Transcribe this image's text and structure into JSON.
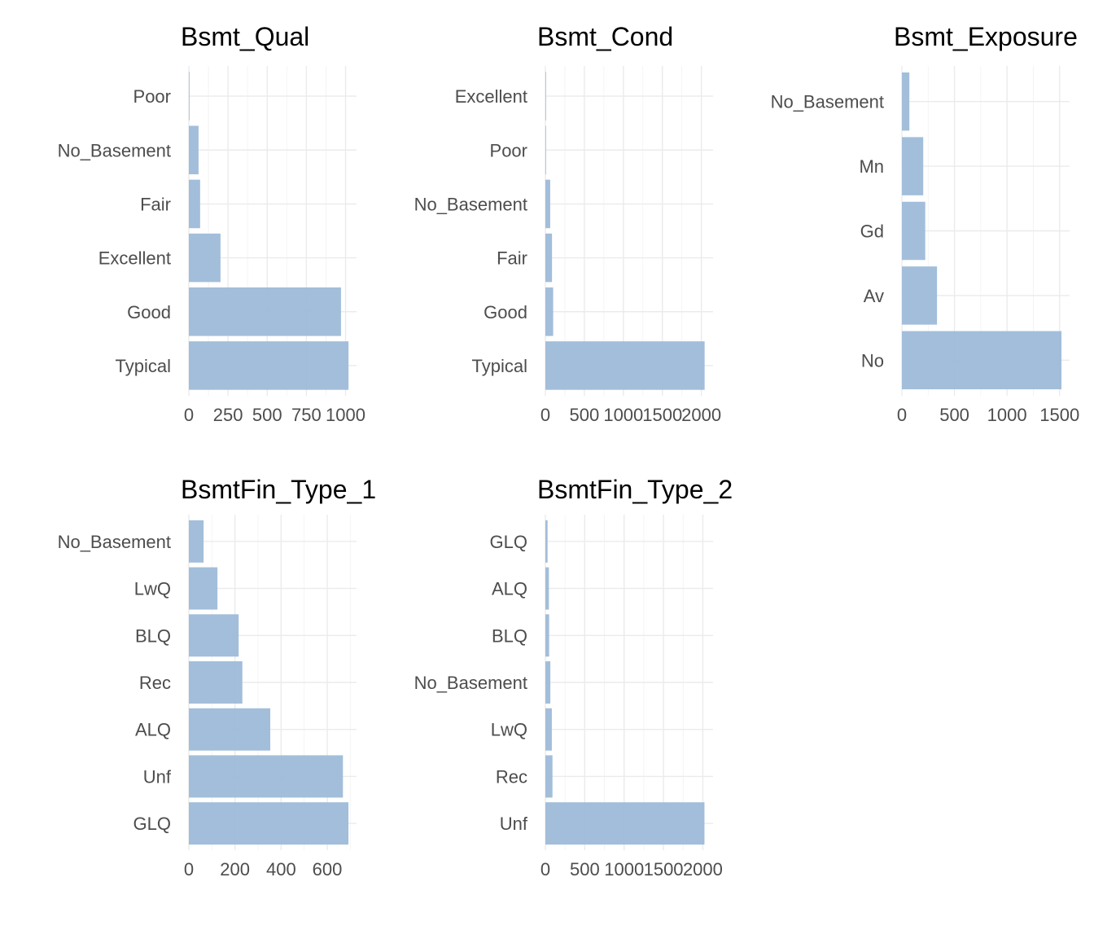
{
  "colors": {
    "bar": "#9dbbd8",
    "grid": "#ebebeb",
    "text": "#4d4d4d",
    "title": "#000000"
  },
  "chart_data": [
    {
      "type": "bar",
      "orientation": "horizontal",
      "title": "Bsmt_Qual",
      "categories": [
        "Typical",
        "Good",
        "Excellent",
        "Fair",
        "No_Basement",
        "Poor"
      ],
      "values": [
        1019,
        971,
        202,
        72,
        62,
        1
      ],
      "xlim": [
        0,
        1070
      ],
      "xticks": [
        0,
        250,
        500,
        750,
        1000
      ]
    },
    {
      "type": "bar",
      "orientation": "horizontal",
      "title": "Bsmt_Cond",
      "categories": [
        "Typical",
        "Good",
        "Fair",
        "No_Basement",
        "Poor",
        "Excellent"
      ],
      "values": [
        2042,
        100,
        85,
        62,
        5,
        3
      ],
      "xlim": [
        0,
        2150
      ],
      "xticks": [
        0,
        500,
        1000,
        1500,
        2000
      ]
    },
    {
      "type": "bar",
      "orientation": "horizontal",
      "title": "Bsmt_Exposure",
      "categories": [
        "No",
        "Av",
        "Gd",
        "Mn",
        "No_Basement"
      ],
      "values": [
        1518,
        334,
        222,
        203,
        71
      ],
      "xlim": [
        0,
        1595
      ],
      "xticks": [
        0,
        500,
        1000,
        1500
      ]
    },
    {
      "type": "bar",
      "orientation": "horizontal",
      "title": "BsmtFin_Type_1",
      "categories": [
        "GLQ",
        "Unf",
        "ALQ",
        "Rec",
        "BLQ",
        "LwQ",
        "No_Basement"
      ],
      "values": [
        692,
        668,
        353,
        232,
        216,
        124,
        64
      ],
      "xlim": [
        0,
        727
      ],
      "xticks": [
        0,
        200,
        400,
        600
      ]
    },
    {
      "type": "bar",
      "orientation": "horizontal",
      "title": "BsmtFin_Type_2",
      "categories": [
        "Unf",
        "Rec",
        "LwQ",
        "No_Basement",
        "BLQ",
        "ALQ",
        "GLQ"
      ],
      "values": [
        2021,
        90,
        82,
        63,
        48,
        45,
        28
      ],
      "xlim": [
        0,
        2130
      ],
      "xticks": [
        0,
        500,
        1000,
        1500,
        2000
      ]
    }
  ]
}
